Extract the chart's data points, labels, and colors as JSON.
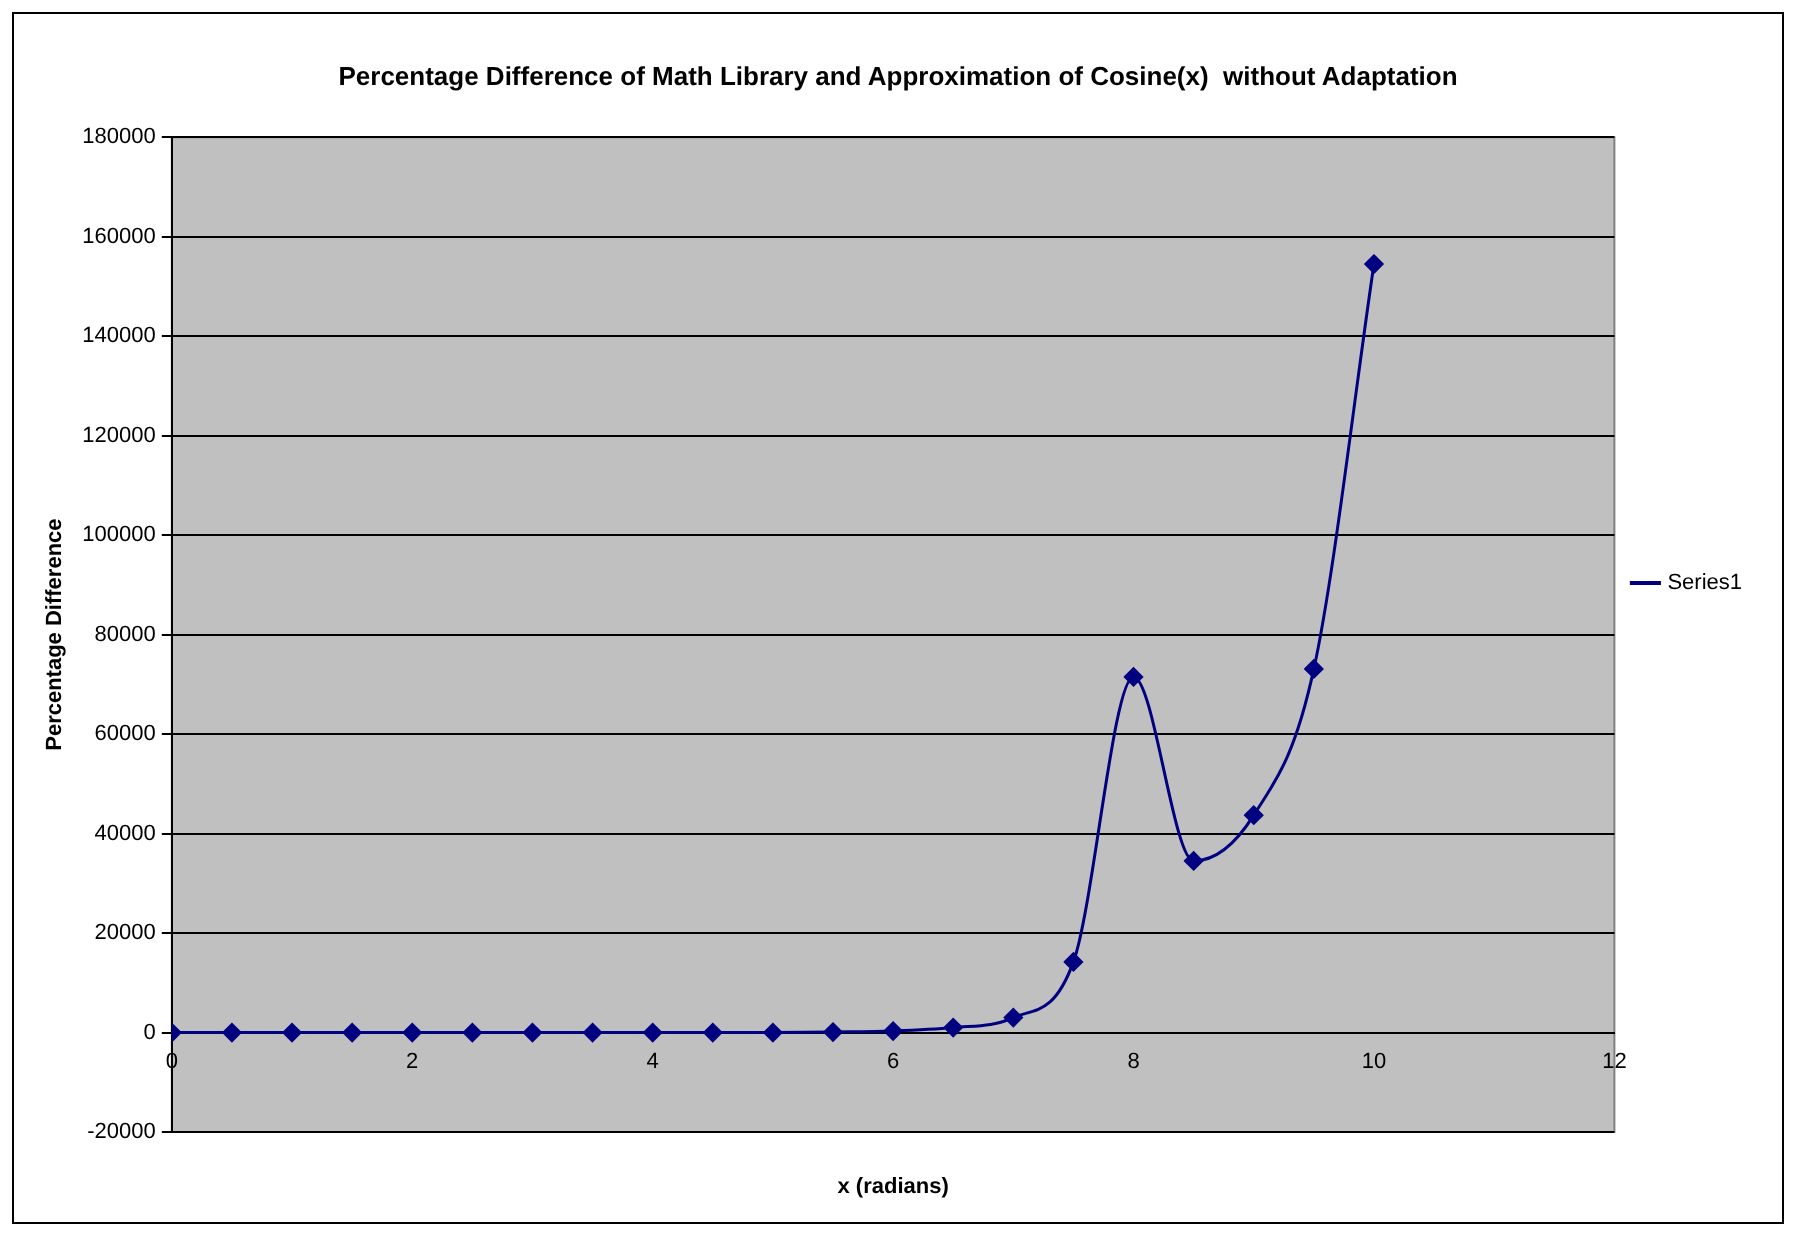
{
  "chart_data": {
    "type": "line",
    "title": "Percentage Difference of Math Library and Approximation of Cosine(x)  without Adaptation",
    "xlabel": "x (radians)",
    "ylabel": "Percentage Difference",
    "x": [
      0,
      0.5,
      1,
      1.5,
      2,
      2.5,
      3,
      3.5,
      4,
      4.5,
      5,
      5.5,
      6,
      6.5,
      7,
      7.5,
      8,
      8.5,
      9,
      9.5,
      10
    ],
    "series": [
      {
        "name": "Series1",
        "color": "#000080",
        "values": [
          0,
          0,
          0,
          0,
          0,
          0,
          0,
          0,
          0,
          0,
          0,
          100,
          300,
          1000,
          3000,
          14200,
          71500,
          34500,
          43700,
          73100,
          154500
        ]
      }
    ],
    "xlim": [
      0,
      12
    ],
    "xticks": [
      0,
      2,
      4,
      6,
      8,
      10,
      12
    ],
    "ylim": [
      -20000,
      180000
    ],
    "yticks": [
      -20000,
      0,
      20000,
      40000,
      60000,
      80000,
      100000,
      120000,
      140000,
      160000,
      180000
    ],
    "grid": "y",
    "legend": "right",
    "marker": "diamond",
    "line_style": "solid"
  }
}
